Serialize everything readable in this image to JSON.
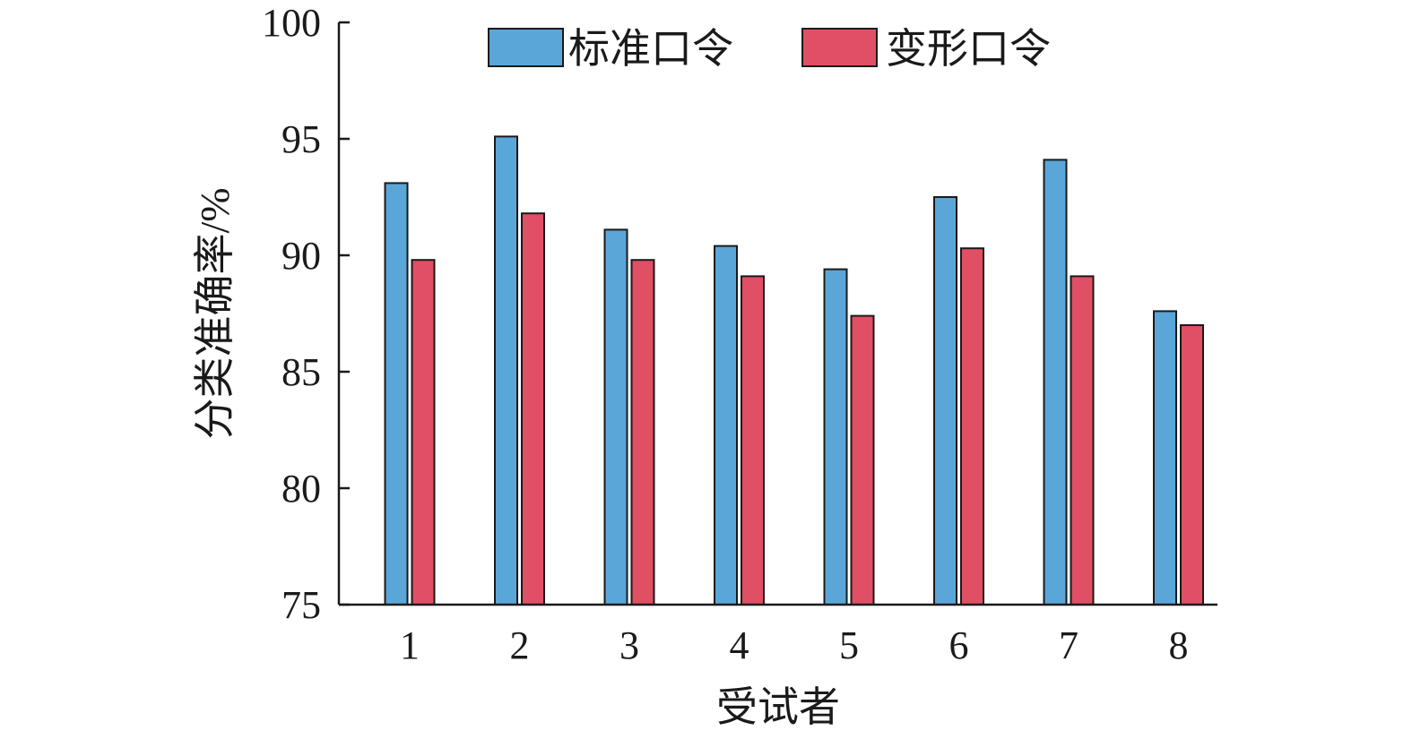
{
  "chart_data": {
    "type": "bar",
    "categories": [
      "1",
      "2",
      "3",
      "4",
      "5",
      "6",
      "7",
      "8"
    ],
    "series": [
      {
        "name": "标准口令",
        "color": "#5aa6d8",
        "values": [
          93.1,
          95.1,
          91.1,
          90.4,
          89.4,
          92.5,
          94.1,
          87.6
        ]
      },
      {
        "name": "变形口令",
        "color": "#e04f64",
        "values": [
          89.8,
          91.8,
          89.8,
          89.1,
          87.4,
          90.3,
          89.1,
          87.0
        ]
      }
    ],
    "xlabel": "受试者",
    "ylabel": "分类准确率/%",
    "ylim": [
      75,
      100
    ],
    "yticks": [
      75,
      80,
      85,
      90,
      95,
      100
    ],
    "grid": false,
    "legend_position": "top"
  }
}
